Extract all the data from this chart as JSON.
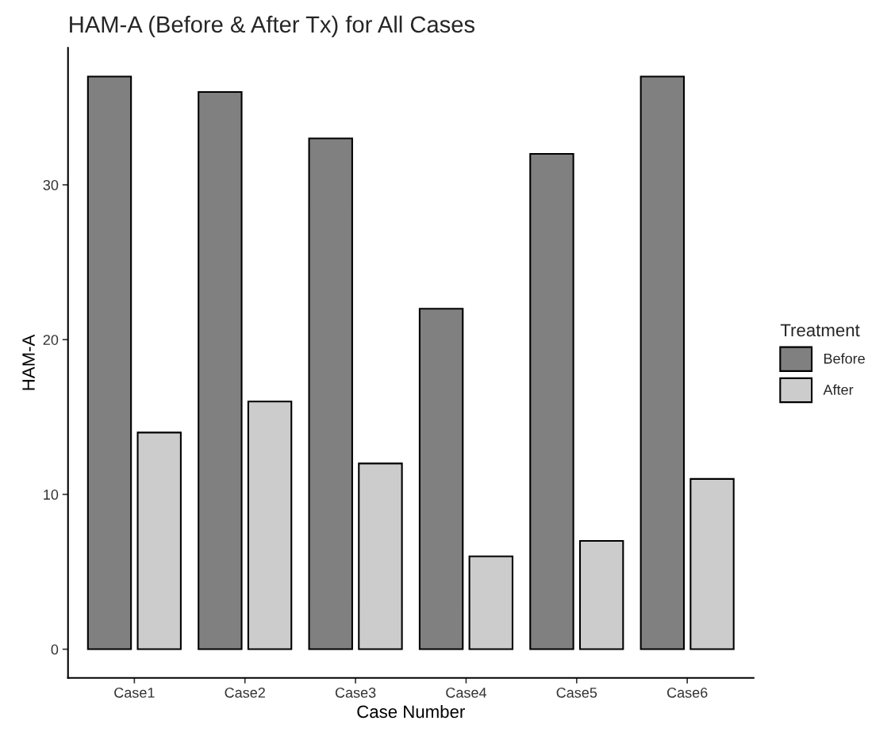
{
  "chart_data": {
    "type": "bar",
    "title": "HAM-A (Before & After Tx) for All Cases",
    "xlabel": "Case Number",
    "ylabel": "HAM-A",
    "legend_title": "Treatment",
    "categories": [
      "Case1",
      "Case2",
      "Case3",
      "Case4",
      "Case5",
      "Case6"
    ],
    "series": [
      {
        "name": "Before",
        "color": "#808080",
        "values": [
          37,
          36,
          33,
          22,
          32,
          37
        ]
      },
      {
        "name": "After",
        "color": "#cccccc",
        "values": [
          14,
          16,
          12,
          6,
          7,
          11
        ]
      }
    ],
    "ylim": [
      -1.85,
      38.85
    ],
    "yticks": [
      0,
      10,
      20,
      30
    ],
    "grid": false,
    "legend": "right"
  }
}
